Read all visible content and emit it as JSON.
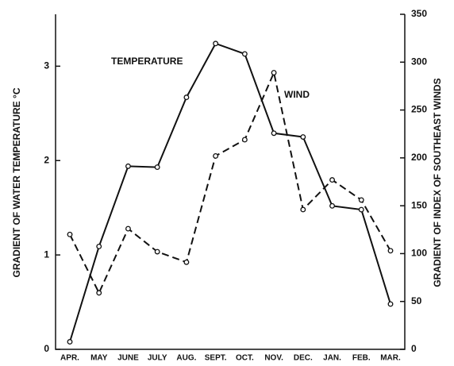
{
  "chart_data": {
    "type": "line",
    "categories": [
      "APR.",
      "MAY",
      "JUNE",
      "JULY",
      "AUG.",
      "SEPT.",
      "OCT.",
      "NOV.",
      "DEC.",
      "JAN.",
      "FEB.",
      "MAR."
    ],
    "ylabel": "GRADIENT OF WATER TEMPERATURE °C",
    "y2label": "GRADIENT OF INDEX OF SOUTHEAST WINDS",
    "ylim": [
      0,
      3.55
    ],
    "yticks": [
      0,
      1,
      2,
      3
    ],
    "y2lim": [
      0,
      350
    ],
    "y2ticks": [
      0,
      50,
      100,
      150,
      200,
      250,
      300,
      350
    ],
    "series": [
      {
        "name": "TEMPERATURE",
        "color": "#111111",
        "style": "solid",
        "axis": "y",
        "values": [
          0.08,
          1.09,
          1.94,
          1.93,
          2.67,
          3.24,
          3.13,
          2.29,
          2.25,
          1.52,
          1.48,
          0.48
        ]
      },
      {
        "name": "WIND",
        "color": "#111111",
        "style": "dashed",
        "axis": "y2",
        "values": [
          120,
          59,
          126,
          102,
          91,
          202,
          219,
          289,
          146,
          177,
          156,
          103
        ]
      }
    ]
  }
}
